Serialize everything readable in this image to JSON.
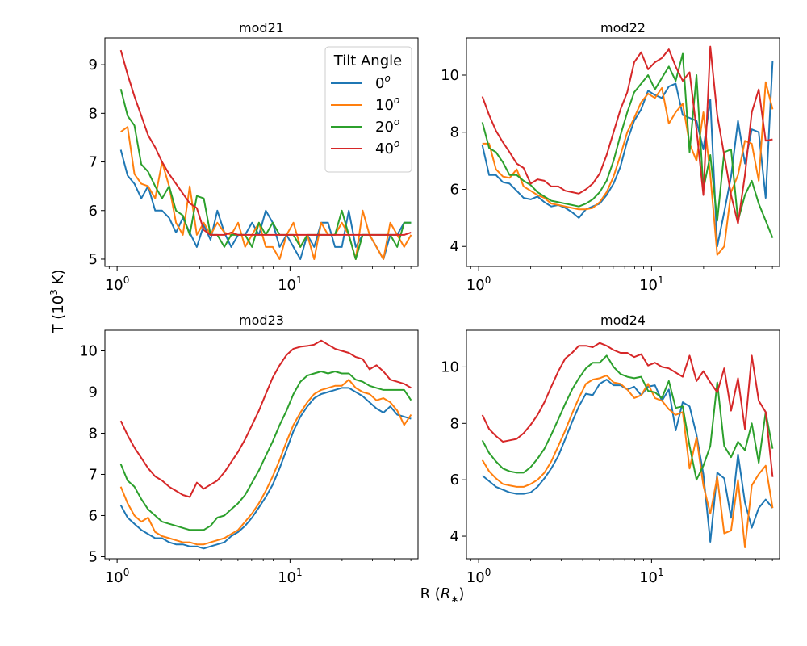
{
  "figure": {
    "ylabel_base": "T (10",
    "ylabel_exp": "3",
    "ylabel_unit": " K)",
    "xlabel_base": "R (",
    "xlabel_var": "R",
    "xlabel_sub": "∗",
    "xlabel_close": ")"
  },
  "legend": {
    "title": "Tilt Angle",
    "entries": [
      {
        "base": "0",
        "sup": "o",
        "color": "#1f77b4"
      },
      {
        "base": "10",
        "sup": "o",
        "color": "#ff7f0e"
      },
      {
        "base": "20",
        "sup": "o",
        "color": "#2ca02c"
      },
      {
        "base": "40",
        "sup": "o",
        "color": "#d62728"
      }
    ]
  },
  "chart_data": [
    {
      "type": "line",
      "title": "mod21",
      "xscale": "log",
      "xlim": [
        0.85,
        55
      ],
      "ylim": [
        4.85,
        9.55
      ],
      "yticks": [
        5,
        6,
        7,
        8,
        9
      ],
      "xticks": [
        {
          "value": 1,
          "base": "10",
          "exp": "0"
        },
        {
          "value": 10,
          "base": "10",
          "exp": "1"
        }
      ],
      "x": [
        1.05,
        1.15,
        1.26,
        1.38,
        1.51,
        1.66,
        1.82,
        2.0,
        2.19,
        2.4,
        2.63,
        2.89,
        3.17,
        3.47,
        3.8,
        4.17,
        4.57,
        5.01,
        5.5,
        6.03,
        6.61,
        7.24,
        7.94,
        8.71,
        9.55,
        10.47,
        11.48,
        12.59,
        13.8,
        15.14,
        16.6,
        18.2,
        19.95,
        21.88,
        23.99,
        26.3,
        28.84,
        31.62,
        34.67,
        38.02,
        41.69,
        45.71,
        50.12
      ],
      "series": [
        {
          "name": "0°",
          "color": "#1f77b4",
          "values": [
            7.25,
            6.72,
            6.55,
            6.25,
            6.5,
            6.0,
            6.0,
            5.85,
            5.55,
            5.85,
            5.55,
            5.25,
            5.7,
            5.4,
            6.0,
            5.55,
            5.25,
            5.5,
            5.5,
            5.75,
            5.5,
            6.0,
            5.75,
            5.25,
            5.5,
            5.25,
            5.0,
            5.5,
            5.25,
            5.75,
            5.75,
            5.25,
            5.25,
            6.0,
            5.25,
            5.5,
            5.5,
            5.25,
            5.0,
            5.5,
            5.5,
            5.75,
            5.75
          ]
        },
        {
          "name": "10°",
          "color": "#ff7f0e",
          "values": [
            7.62,
            7.72,
            6.75,
            6.55,
            6.5,
            6.25,
            7.0,
            6.5,
            5.75,
            5.5,
            6.5,
            5.5,
            5.75,
            5.5,
            5.75,
            5.55,
            5.5,
            5.75,
            5.25,
            5.5,
            5.75,
            5.25,
            5.25,
            5.0,
            5.5,
            5.75,
            5.25,
            5.5,
            5.0,
            5.75,
            5.5,
            5.5,
            5.75,
            5.5,
            5.0,
            6.0,
            5.5,
            5.25,
            5.0,
            5.75,
            5.5,
            5.25,
            5.5
          ]
        },
        {
          "name": "20°",
          "color": "#2ca02c",
          "values": [
            8.5,
            7.95,
            7.75,
            6.95,
            6.8,
            6.5,
            6.25,
            6.5,
            6.0,
            5.9,
            5.5,
            6.3,
            6.25,
            5.5,
            5.5,
            5.25,
            5.5,
            5.5,
            5.5,
            5.25,
            5.75,
            5.5,
            5.75,
            5.5,
            5.5,
            5.5,
            5.25,
            5.5,
            5.5,
            5.5,
            5.5,
            5.5,
            6.0,
            5.5,
            5.0,
            5.5,
            5.5,
            5.5,
            5.5,
            5.5,
            5.25,
            5.75,
            5.75
          ]
        },
        {
          "name": "40°",
          "color": "#d62728",
          "values": [
            9.3,
            8.8,
            8.35,
            7.95,
            7.55,
            7.3,
            7.0,
            6.75,
            6.55,
            6.35,
            6.15,
            6.05,
            5.6,
            5.5,
            5.5,
            5.5,
            5.55,
            5.5,
            5.5,
            5.5,
            5.5,
            5.5,
            5.5,
            5.5,
            5.5,
            5.5,
            5.5,
            5.5,
            5.5,
            5.5,
            5.5,
            5.5,
            5.5,
            5.5,
            5.5,
            5.5,
            5.5,
            5.5,
            5.5,
            5.5,
            5.5,
            5.5,
            5.55
          ]
        }
      ]
    },
    {
      "type": "line",
      "title": "mod22",
      "xscale": "log",
      "xlim": [
        0.85,
        55
      ],
      "ylim": [
        3.3,
        11.3
      ],
      "yticks": [
        4,
        6,
        8,
        10
      ],
      "xticks": [
        {
          "value": 1,
          "base": "10",
          "exp": "0"
        },
        {
          "value": 10,
          "base": "10",
          "exp": "1"
        }
      ],
      "x": [
        1.05,
        1.15,
        1.26,
        1.38,
        1.51,
        1.66,
        1.82,
        2.0,
        2.19,
        2.4,
        2.63,
        2.89,
        3.17,
        3.47,
        3.8,
        4.17,
        4.57,
        5.01,
        5.5,
        6.03,
        6.61,
        7.24,
        7.94,
        8.71,
        9.55,
        10.47,
        11.48,
        12.59,
        13.8,
        15.14,
        16.6,
        18.2,
        19.95,
        21.88,
        23.99,
        26.3,
        28.84,
        31.62,
        34.67,
        38.02,
        41.69,
        45.71,
        50.12
      ],
      "series": [
        {
          "name": "0°",
          "color": "#1f77b4",
          "values": [
            7.55,
            6.5,
            6.5,
            6.25,
            6.2,
            5.95,
            5.7,
            5.65,
            5.75,
            5.55,
            5.4,
            5.45,
            5.35,
            5.2,
            5.0,
            5.3,
            5.4,
            5.5,
            5.8,
            6.2,
            6.8,
            7.7,
            8.4,
            8.8,
            9.45,
            9.3,
            9.2,
            9.6,
            9.7,
            8.6,
            8.5,
            8.4,
            7.4,
            9.15,
            4.0,
            5.2,
            6.45,
            8.4,
            6.9,
            8.1,
            8.0,
            5.7,
            10.5
          ]
        },
        {
          "name": "10°",
          "color": "#ff7f0e",
          "values": [
            7.6,
            7.6,
            6.7,
            6.45,
            6.4,
            6.7,
            6.1,
            5.95,
            5.8,
            5.7,
            5.5,
            5.45,
            5.4,
            5.35,
            5.3,
            5.3,
            5.35,
            5.55,
            5.9,
            6.45,
            7.2,
            8.0,
            8.5,
            9.05,
            9.35,
            9.2,
            9.55,
            8.3,
            8.7,
            9.0,
            7.6,
            7.0,
            8.7,
            6.5,
            3.7,
            4.0,
            5.9,
            6.5,
            7.7,
            7.6,
            6.3,
            9.75,
            8.8
          ]
        },
        {
          "name": "20°",
          "color": "#2ca02c",
          "values": [
            8.35,
            7.45,
            7.3,
            6.95,
            6.5,
            6.5,
            6.3,
            6.15,
            5.9,
            5.75,
            5.6,
            5.55,
            5.5,
            5.45,
            5.4,
            5.5,
            5.65,
            5.9,
            6.3,
            7.0,
            7.9,
            8.7,
            9.4,
            9.7,
            10.0,
            9.5,
            9.9,
            10.3,
            9.8,
            10.75,
            7.3,
            10.0,
            6.0,
            7.2,
            4.9,
            7.3,
            7.4,
            4.9,
            5.8,
            6.3,
            5.5,
            4.9,
            4.3
          ]
        },
        {
          "name": "40°",
          "color": "#d62728",
          "values": [
            9.25,
            8.6,
            8.05,
            7.65,
            7.3,
            6.9,
            6.75,
            6.2,
            6.35,
            6.3,
            6.1,
            6.1,
            5.95,
            5.9,
            5.85,
            6.0,
            6.2,
            6.55,
            7.2,
            8.0,
            8.8,
            9.4,
            10.45,
            10.8,
            10.2,
            10.45,
            10.6,
            10.9,
            10.3,
            9.8,
            10.1,
            8.1,
            5.8,
            11.0,
            8.6,
            7.2,
            5.8,
            4.8,
            6.5,
            8.7,
            9.5,
            7.7,
            7.75
          ]
        }
      ]
    },
    {
      "type": "line",
      "title": "mod23",
      "xscale": "log",
      "xlim": [
        0.85,
        55
      ],
      "ylim": [
        4.95,
        10.5
      ],
      "yticks": [
        5,
        6,
        7,
        8,
        9,
        10
      ],
      "xticks": [
        {
          "value": 1,
          "base": "10",
          "exp": "0"
        },
        {
          "value": 10,
          "base": "10",
          "exp": "1"
        }
      ],
      "x": [
        1.05,
        1.15,
        1.26,
        1.38,
        1.51,
        1.66,
        1.82,
        2.0,
        2.19,
        2.4,
        2.63,
        2.89,
        3.17,
        3.47,
        3.8,
        4.17,
        4.57,
        5.01,
        5.5,
        6.03,
        6.61,
        7.24,
        7.94,
        8.71,
        9.55,
        10.47,
        11.48,
        12.59,
        13.8,
        15.14,
        16.6,
        18.2,
        19.95,
        21.88,
        23.99,
        26.3,
        28.84,
        31.62,
        34.67,
        38.02,
        41.69,
        45.71,
        50.12
      ],
      "series": [
        {
          "name": "0°",
          "color": "#1f77b4",
          "values": [
            6.25,
            5.95,
            5.8,
            5.65,
            5.55,
            5.45,
            5.45,
            5.35,
            5.3,
            5.3,
            5.25,
            5.25,
            5.2,
            5.25,
            5.3,
            5.35,
            5.5,
            5.6,
            5.75,
            5.95,
            6.2,
            6.45,
            6.75,
            7.15,
            7.6,
            8.05,
            8.4,
            8.65,
            8.85,
            8.95,
            9.0,
            9.05,
            9.1,
            9.1,
            9.0,
            8.9,
            8.75,
            8.6,
            8.5,
            8.65,
            8.45,
            8.4,
            8.35
          ]
        },
        {
          "name": "10°",
          "color": "#ff7f0e",
          "values": [
            6.7,
            6.3,
            6.0,
            5.85,
            5.95,
            5.6,
            5.5,
            5.45,
            5.4,
            5.35,
            5.35,
            5.3,
            5.3,
            5.35,
            5.4,
            5.45,
            5.55,
            5.65,
            5.85,
            6.05,
            6.3,
            6.6,
            6.95,
            7.35,
            7.8,
            8.2,
            8.5,
            8.75,
            8.95,
            9.05,
            9.1,
            9.15,
            9.15,
            9.3,
            9.1,
            9.0,
            8.95,
            8.8,
            8.85,
            8.75,
            8.55,
            8.2,
            8.45
          ]
        },
        {
          "name": "20°",
          "color": "#2ca02c",
          "values": [
            7.25,
            6.85,
            6.7,
            6.4,
            6.15,
            6.0,
            5.85,
            5.8,
            5.75,
            5.7,
            5.65,
            5.65,
            5.65,
            5.75,
            5.95,
            6.0,
            6.15,
            6.3,
            6.5,
            6.8,
            7.1,
            7.45,
            7.8,
            8.2,
            8.55,
            8.95,
            9.25,
            9.4,
            9.45,
            9.5,
            9.45,
            9.5,
            9.45,
            9.45,
            9.3,
            9.25,
            9.15,
            9.1,
            9.05,
            9.05,
            9.05,
            9.05,
            8.8
          ]
        },
        {
          "name": "40°",
          "color": "#d62728",
          "values": [
            8.3,
            7.95,
            7.65,
            7.4,
            7.15,
            6.95,
            6.85,
            6.7,
            6.6,
            6.5,
            6.45,
            6.8,
            6.65,
            6.75,
            6.85,
            7.05,
            7.3,
            7.55,
            7.85,
            8.2,
            8.55,
            8.95,
            9.35,
            9.65,
            9.9,
            10.05,
            10.1,
            10.12,
            10.15,
            10.25,
            10.15,
            10.05,
            10.0,
            9.95,
            9.85,
            9.8,
            9.55,
            9.65,
            9.5,
            9.3,
            9.25,
            9.2,
            9.1
          ]
        }
      ]
    },
    {
      "type": "line",
      "title": "mod24",
      "xscale": "log",
      "xlim": [
        0.85,
        55
      ],
      "ylim": [
        3.2,
        11.3
      ],
      "yticks": [
        4,
        6,
        8,
        10
      ],
      "xticks": [
        {
          "value": 1,
          "base": "10",
          "exp": "0"
        },
        {
          "value": 10,
          "base": "10",
          "exp": "1"
        }
      ],
      "x": [
        1.05,
        1.15,
        1.26,
        1.38,
        1.51,
        1.66,
        1.82,
        2.0,
        2.19,
        2.4,
        2.63,
        2.89,
        3.17,
        3.47,
        3.8,
        4.17,
        4.57,
        5.01,
        5.5,
        6.03,
        6.61,
        7.24,
        7.94,
        8.71,
        9.55,
        10.47,
        11.48,
        12.59,
        13.8,
        15.14,
        16.6,
        18.2,
        19.95,
        21.88,
        23.99,
        26.3,
        28.84,
        31.62,
        34.67,
        38.02,
        41.69,
        45.71,
        50.12
      ],
      "series": [
        {
          "name": "0°",
          "color": "#1f77b4",
          "values": [
            6.15,
            5.95,
            5.75,
            5.65,
            5.55,
            5.5,
            5.5,
            5.55,
            5.75,
            6.05,
            6.4,
            6.85,
            7.45,
            8.05,
            8.6,
            9.05,
            9.0,
            9.4,
            9.55,
            9.35,
            9.35,
            9.2,
            9.3,
            9.0,
            9.3,
            9.35,
            8.8,
            9.2,
            7.75,
            8.75,
            8.6,
            7.6,
            6.2,
            3.8,
            6.25,
            6.05,
            4.65,
            6.9,
            5.2,
            4.3,
            5.0,
            5.3,
            5.0
          ]
        },
        {
          "name": "10°",
          "color": "#ff7f0e",
          "values": [
            6.7,
            6.3,
            6.05,
            5.85,
            5.8,
            5.75,
            5.75,
            5.85,
            6.0,
            6.25,
            6.65,
            7.2,
            7.75,
            8.35,
            8.9,
            9.4,
            9.55,
            9.6,
            9.7,
            9.45,
            9.4,
            9.2,
            8.9,
            9.0,
            9.4,
            8.9,
            8.8,
            8.5,
            8.3,
            8.4,
            6.4,
            7.5,
            5.8,
            4.8,
            6.1,
            4.1,
            4.2,
            6.0,
            3.6,
            5.8,
            6.2,
            6.5,
            5.0
          ]
        },
        {
          "name": "20°",
          "color": "#2ca02c",
          "values": [
            7.4,
            6.95,
            6.65,
            6.4,
            6.3,
            6.25,
            6.25,
            6.45,
            6.75,
            7.1,
            7.6,
            8.15,
            8.7,
            9.2,
            9.6,
            9.95,
            10.15,
            10.15,
            10.4,
            10.0,
            9.75,
            9.65,
            9.6,
            9.65,
            9.15,
            9.1,
            8.9,
            9.5,
            8.55,
            8.6,
            7.2,
            6.0,
            6.5,
            7.2,
            9.45,
            7.2,
            6.8,
            7.35,
            7.05,
            8.0,
            6.6,
            8.4,
            7.1
          ]
        },
        {
          "name": "40°",
          "color": "#d62728",
          "values": [
            8.3,
            7.8,
            7.55,
            7.35,
            7.4,
            7.45,
            7.65,
            7.95,
            8.3,
            8.75,
            9.3,
            9.85,
            10.3,
            10.5,
            10.75,
            10.75,
            10.7,
            10.85,
            10.75,
            10.6,
            10.5,
            10.5,
            10.35,
            10.45,
            10.05,
            10.15,
            10.0,
            9.95,
            9.8,
            9.65,
            10.4,
            9.5,
            9.85,
            9.45,
            9.1,
            9.95,
            8.45,
            9.6,
            7.8,
            10.4,
            8.8,
            8.4,
            6.1
          ]
        }
      ]
    }
  ]
}
